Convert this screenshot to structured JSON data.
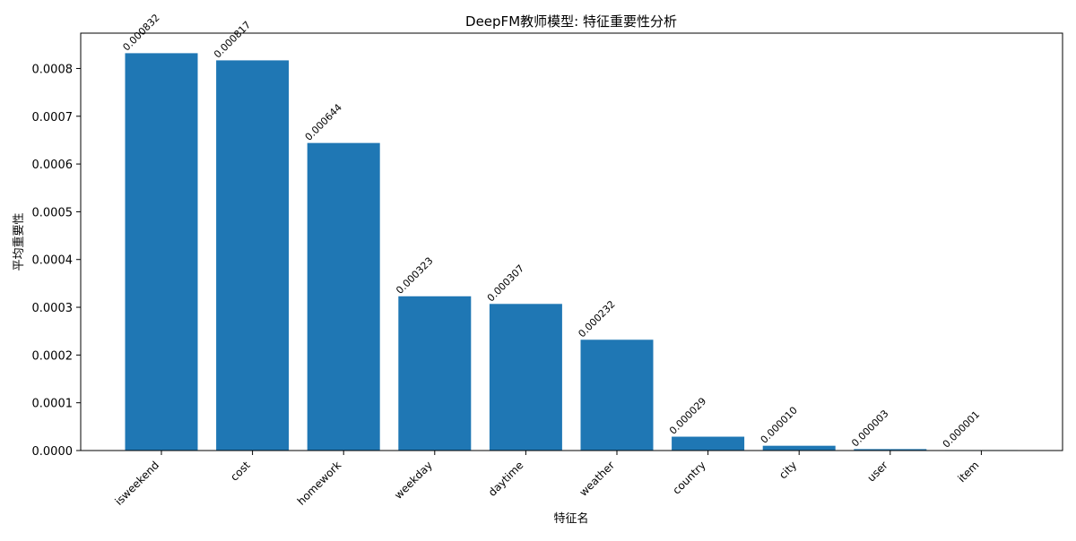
{
  "chart_data": {
    "type": "bar",
    "title": "DeepFM教师模型: 特征重要性分析",
    "xlabel": "特征名",
    "ylabel": "平均重要性",
    "categories": [
      "isweekend",
      "cost",
      "homework",
      "weekday",
      "daytime",
      "weather",
      "country",
      "city",
      "user",
      "item"
    ],
    "values": [
      0.000832,
      0.000817,
      0.000644,
      0.000323,
      0.000307,
      0.000232,
      2.9e-05,
      1e-05,
      3e-06,
      1e-06
    ],
    "value_labels": [
      "0.000832",
      "0.000817",
      "0.000644",
      "0.000323",
      "0.000307",
      "0.000232",
      "0.000029",
      "0.000010",
      "0.000003",
      "0.000001"
    ],
    "yticks": [
      0,
      0.0001,
      0.0002,
      0.0003,
      0.0004,
      0.0005,
      0.0006,
      0.0007,
      0.0008
    ],
    "ytick_labels": [
      "0.0000",
      "0.0001",
      "0.0002",
      "0.0003",
      "0.0004",
      "0.0005",
      "0.0006",
      "0.0007",
      "0.0008"
    ],
    "ylim": [
      0,
      0.000874
    ],
    "grid": false,
    "bar_color": "#1f77b4"
  }
}
